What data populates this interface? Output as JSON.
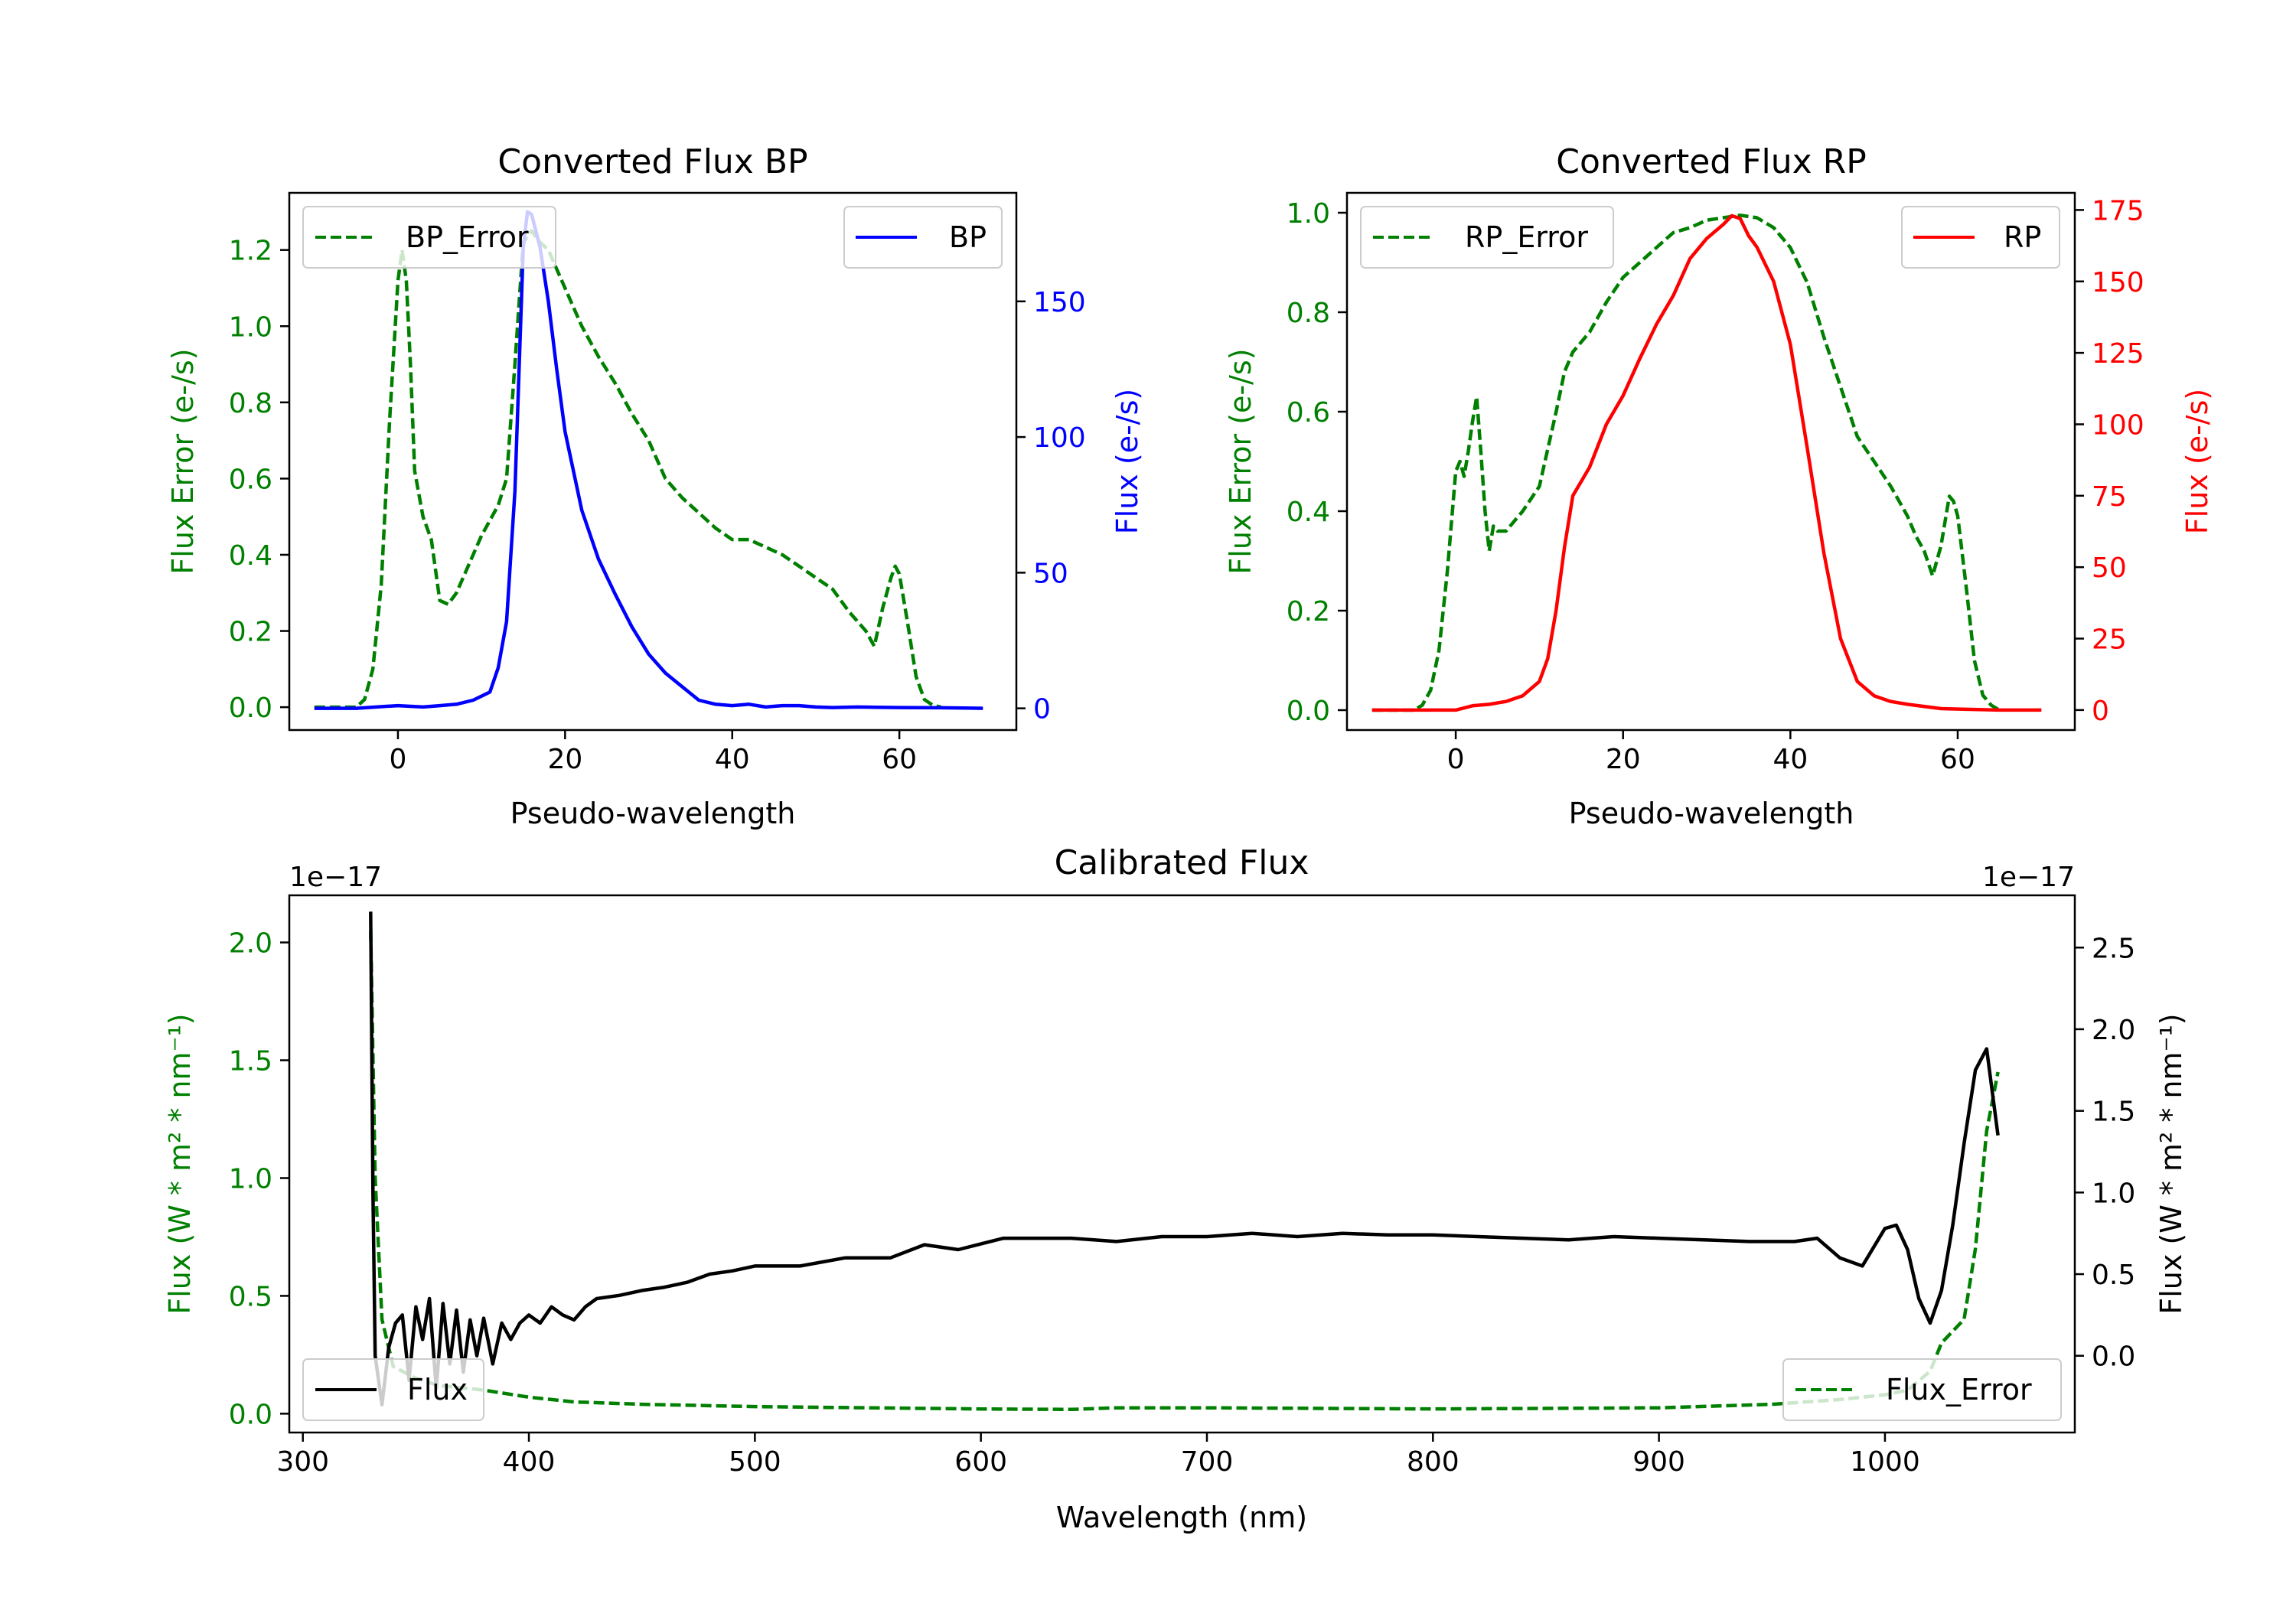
{
  "chart_data": [
    {
      "type": "line",
      "title": "Converted Flux BP",
      "xlabel": "Pseudo-wavelength",
      "ylabel_left": "Flux Error (e-/s)",
      "ylabel_right": "Flux (e-/s)",
      "xlim": [
        -13,
        74
      ],
      "ylim_left": [
        -0.06,
        1.35
      ],
      "ylim_right": [
        -8,
        190
      ],
      "xticks": [
        "0",
        "20",
        "40",
        "60"
      ],
      "yticks_left": [
        "0.0",
        "0.2",
        "0.4",
        "0.6",
        "0.8",
        "1.0",
        "1.2"
      ],
      "yticks_right": [
        "0",
        "50",
        "100",
        "150"
      ],
      "legend": {
        "left": "BP_Error",
        "right": "BP"
      },
      "series": [
        {
          "name": "BP_Error",
          "axis": "left",
          "color": "#008000",
          "style": "dashed",
          "x": [
            -10,
            -5,
            -4,
            -3,
            -2,
            -1,
            0,
            0.5,
            1,
            1.5,
            2,
            3,
            4,
            5,
            6,
            7,
            8,
            9,
            10,
            12,
            13,
            14,
            15,
            16,
            17,
            18,
            19,
            20,
            22,
            24,
            26,
            28,
            30,
            32,
            34,
            36,
            38,
            40,
            42,
            44,
            46,
            48,
            50,
            52,
            54,
            56,
            57,
            58,
            59,
            59.5,
            60,
            61,
            62,
            63,
            64,
            65
          ],
          "values": [
            0,
            0,
            0.02,
            0.1,
            0.32,
            0.75,
            1.12,
            1.2,
            1.12,
            0.9,
            0.62,
            0.5,
            0.44,
            0.28,
            0.27,
            0.3,
            0.35,
            0.4,
            0.45,
            0.53,
            0.6,
            0.9,
            1.22,
            1.25,
            1.22,
            1.2,
            1.15,
            1.1,
            1.0,
            0.92,
            0.85,
            0.77,
            0.7,
            0.6,
            0.55,
            0.51,
            0.47,
            0.44,
            0.44,
            0.42,
            0.4,
            0.37,
            0.34,
            0.31,
            0.25,
            0.2,
            0.16,
            0.26,
            0.34,
            0.37,
            0.35,
            0.22,
            0.08,
            0.02,
            0.005,
            0
          ]
        },
        {
          "name": "BP",
          "axis": "right",
          "color": "#0000ff",
          "style": "solid",
          "x": [
            -10,
            -5,
            0,
            3,
            5,
            7,
            9,
            11,
            12,
            13,
            14,
            15,
            15.5,
            16,
            17,
            18,
            19,
            20,
            22,
            24,
            26,
            28,
            30,
            32,
            34,
            36,
            38,
            40,
            42,
            44,
            46,
            48,
            50,
            52,
            55,
            60,
            65,
            70
          ],
          "values": [
            0,
            0,
            1,
            0.5,
            1,
            1.5,
            3,
            6,
            15,
            32,
            80,
            170,
            183,
            182,
            170,
            150,
            125,
            102,
            73,
            55,
            42,
            30,
            20,
            13,
            8,
            3,
            1.5,
            1,
            1.5,
            0.5,
            1,
            1,
            0.5,
            0.3,
            0.5,
            0.3,
            0.2,
            0
          ]
        }
      ]
    },
    {
      "type": "line",
      "title": "Converted Flux RP",
      "xlabel": "Pseudo-wavelength",
      "ylabel_left": "Flux Error (e-/s)",
      "ylabel_right": "Flux (e-/s)",
      "xlim": [
        -13,
        74
      ],
      "ylim_left": [
        -0.04,
        1.04
      ],
      "ylim_right": [
        -7,
        181
      ],
      "xticks": [
        "0",
        "20",
        "40",
        "60"
      ],
      "yticks_left": [
        "0.0",
        "0.2",
        "0.4",
        "0.6",
        "0.8",
        "1.0"
      ],
      "yticks_right": [
        "0",
        "25",
        "50",
        "75",
        "100",
        "125",
        "150",
        "175"
      ],
      "legend": {
        "left": "RP_Error",
        "right": "RP"
      },
      "series": [
        {
          "name": "RP_Error",
          "axis": "left",
          "color": "#008000",
          "style": "dashed",
          "x": [
            -10,
            -5,
            -4,
            -3,
            -2,
            -1,
            0,
            0.5,
            1,
            1.5,
            2,
            2.5,
            3,
            3.5,
            4,
            4.5,
            5,
            6,
            8,
            10,
            12,
            13,
            14,
            16,
            18,
            20,
            22,
            24,
            26,
            28,
            30,
            32,
            34,
            36,
            38,
            40,
            42,
            44,
            46,
            48,
            50,
            52,
            54,
            55,
            56,
            57,
            58,
            59,
            59.5,
            60,
            61,
            62,
            63,
            64,
            65
          ],
          "values": [
            0,
            0,
            0.01,
            0.04,
            0.12,
            0.28,
            0.48,
            0.5,
            0.47,
            0.52,
            0.58,
            0.63,
            0.52,
            0.4,
            0.32,
            0.37,
            0.36,
            0.36,
            0.4,
            0.45,
            0.6,
            0.68,
            0.72,
            0.76,
            0.82,
            0.87,
            0.9,
            0.93,
            0.96,
            0.97,
            0.985,
            0.99,
            0.995,
            0.99,
            0.97,
            0.93,
            0.86,
            0.75,
            0.65,
            0.55,
            0.5,
            0.45,
            0.39,
            0.35,
            0.32,
            0.27,
            0.33,
            0.43,
            0.42,
            0.39,
            0.25,
            0.1,
            0.03,
            0.01,
            0
          ]
        },
        {
          "name": "RP",
          "axis": "right",
          "color": "#ff0000",
          "style": "solid",
          "x": [
            -10,
            -5,
            0,
            2,
            4,
            6,
            8,
            10,
            11,
            12,
            13,
            14,
            15,
            16,
            18,
            20,
            22,
            24,
            26,
            28,
            30,
            32,
            33,
            34,
            35,
            36,
            38,
            40,
            42,
            44,
            46,
            48,
            50,
            52,
            54,
            58,
            62,
            65,
            70
          ],
          "values": [
            0,
            0,
            0,
            1.5,
            2,
            3,
            5,
            10,
            18,
            35,
            57,
            75,
            80,
            85,
            100,
            110,
            123,
            135,
            145,
            158,
            165,
            170,
            173,
            172,
            166,
            162,
            150,
            128,
            92,
            55,
            25,
            10,
            5,
            3,
            2,
            0.5,
            0.2,
            0,
            0
          ]
        }
      ]
    },
    {
      "type": "line",
      "title": "Calibrated Flux",
      "xlabel": "Wavelength (nm)",
      "ylabel_left": "Flux (W * m² * nm⁻¹)",
      "ylabel_right": "Flux (W * m² * nm⁻¹)",
      "offset_left": "1e−17",
      "offset_right": "1e−17",
      "xlim": [
        294,
        1084
      ],
      "ylim_left": [
        -0.08,
        2.2
      ],
      "ylim_right": [
        -0.47,
        2.82
      ],
      "xticks": [
        "300",
        "400",
        "500",
        "600",
        "700",
        "800",
        "900",
        "1000"
      ],
      "yticks_left": [
        "0.0",
        "0.5",
        "1.0",
        "1.5",
        "2.0"
      ],
      "yticks_right": [
        "0.0",
        "0.5",
        "1.0",
        "1.5",
        "2.0",
        "2.5"
      ],
      "legend": {
        "left": "Flux",
        "right": "Flux_Error"
      },
      "series": [
        {
          "name": "Flux_Error",
          "axis": "left",
          "color": "#008000",
          "style": "dashed",
          "x": [
            330,
            332,
            335,
            340,
            350,
            360,
            380,
            400,
            420,
            450,
            500,
            550,
            600,
            640,
            660,
            700,
            800,
            900,
            950,
            980,
            1000,
            1010,
            1020,
            1025,
            1030,
            1035,
            1040,
            1045,
            1050
          ],
          "values": [
            2.05,
            1.0,
            0.4,
            0.2,
            0.15,
            0.12,
            0.1,
            0.07,
            0.05,
            0.04,
            0.03,
            0.025,
            0.02,
            0.018,
            0.025,
            0.025,
            0.02,
            0.025,
            0.04,
            0.06,
            0.08,
            0.1,
            0.18,
            0.3,
            0.35,
            0.4,
            0.7,
            1.2,
            1.45
          ]
        },
        {
          "name": "Flux",
          "axis": "right",
          "color": "#000000",
          "style": "solid",
          "x": [
            330,
            331,
            332,
            335,
            338,
            341,
            344,
            347,
            350,
            353,
            356,
            359,
            362,
            365,
            368,
            371,
            374,
            377,
            380,
            384,
            388,
            392,
            396,
            400,
            405,
            410,
            415,
            420,
            425,
            430,
            440,
            450,
            460,
            470,
            480,
            490,
            500,
            520,
            540,
            560,
            575,
            590,
            610,
            640,
            660,
            680,
            700,
            720,
            740,
            760,
            780,
            800,
            820,
            840,
            860,
            880,
            900,
            920,
            940,
            960,
            970,
            980,
            990,
            1000,
            1005,
            1010,
            1015,
            1020,
            1025,
            1030,
            1035,
            1040,
            1045,
            1050
          ],
          "values": [
            2.72,
            1.0,
            0.0,
            -0.3,
            0.05,
            0.2,
            0.25,
            -0.15,
            0.3,
            0.1,
            0.35,
            -0.2,
            0.32,
            -0.05,
            0.28,
            -0.1,
            0.22,
            0.0,
            0.23,
            -0.05,
            0.2,
            0.1,
            0.2,
            0.25,
            0.2,
            0.3,
            0.25,
            0.22,
            0.3,
            0.35,
            0.37,
            0.4,
            0.42,
            0.45,
            0.5,
            0.52,
            0.55,
            0.55,
            0.6,
            0.6,
            0.68,
            0.65,
            0.72,
            0.72,
            0.7,
            0.73,
            0.73,
            0.75,
            0.73,
            0.75,
            0.74,
            0.74,
            0.73,
            0.72,
            0.71,
            0.73,
            0.72,
            0.71,
            0.7,
            0.7,
            0.72,
            0.6,
            0.55,
            0.78,
            0.8,
            0.65,
            0.35,
            0.2,
            0.4,
            0.8,
            1.3,
            1.75,
            1.88,
            1.35
          ]
        }
      ]
    }
  ]
}
